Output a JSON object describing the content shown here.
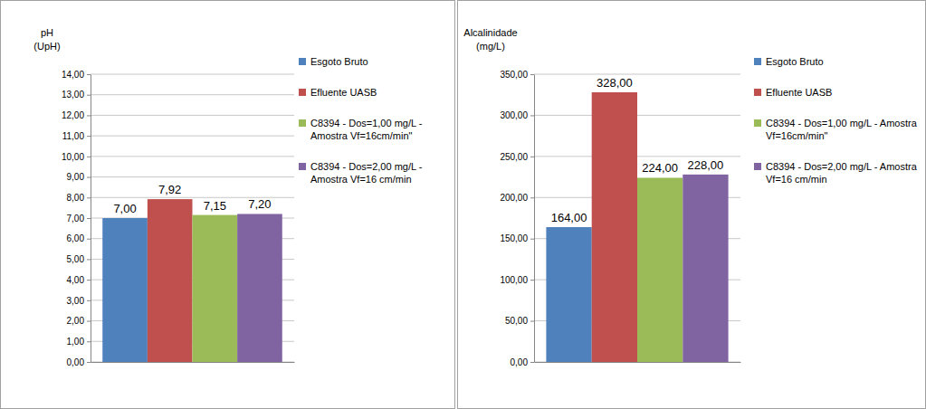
{
  "chart_data": [
    {
      "type": "bar",
      "y_label": [
        "pH",
        "(UpH)"
      ],
      "categories": [
        null
      ],
      "series": [
        {
          "name": "Esgoto Bruto",
          "color": "#4f81bd",
          "values": [
            7.0
          ],
          "value_labels": [
            "7,00"
          ]
        },
        {
          "name": "Efluente UASB",
          "color": "#c0504d",
          "values": [
            7.92
          ],
          "value_labels": [
            "7,92"
          ]
        },
        {
          "name": "C8394 - Dos=1,00 mg/L - Amostra Vf=16cm/min\"",
          "color": "#9bbb59",
          "values": [
            7.15
          ],
          "value_labels": [
            "7,15"
          ]
        },
        {
          "name": "C8394 - Dos=2,00 mg/L - Amostra Vf=16 cm/min",
          "color": "#8064a2",
          "values": [
            7.2
          ],
          "value_labels": [
            "7,20"
          ]
        }
      ],
      "ylim": [
        0,
        14
      ],
      "yticks": [
        {
          "value": 0,
          "label": "0,00"
        },
        {
          "value": 1,
          "label": "1,00"
        },
        {
          "value": 2,
          "label": "2,00"
        },
        {
          "value": 3,
          "label": "3,00"
        },
        {
          "value": 4,
          "label": "4,00"
        },
        {
          "value": 5,
          "label": "5,00"
        },
        {
          "value": 6,
          "label": "6,00"
        },
        {
          "value": 7,
          "label": "7,00"
        },
        {
          "value": 8,
          "label": "8,00"
        },
        {
          "value": 9,
          "label": "9,00"
        },
        {
          "value": 10,
          "label": "10,00"
        },
        {
          "value": 11,
          "label": "11,00"
        },
        {
          "value": 12,
          "label": "12,00"
        },
        {
          "value": 13,
          "label": "13,00"
        },
        {
          "value": 14,
          "label": "14,00"
        }
      ],
      "grid": true,
      "data_labels": true,
      "legend": "right"
    },
    {
      "type": "bar",
      "y_label": [
        "Alcalinidade",
        "(mg/L)"
      ],
      "categories": [
        null
      ],
      "series": [
        {
          "name": "Esgoto Bruto",
          "color": "#4f81bd",
          "values": [
            164.0
          ],
          "value_labels": [
            "164,00"
          ]
        },
        {
          "name": "Efluente UASB",
          "color": "#c0504d",
          "values": [
            328.0
          ],
          "value_labels": [
            "328,00"
          ]
        },
        {
          "name": "C8394 - Dos=1,00 mg/L - Amostra Vf=16cm/min\"",
          "color": "#9bbb59",
          "values": [
            224.0
          ],
          "value_labels": [
            "224,00"
          ]
        },
        {
          "name": "C8394 - Dos=2,00 mg/L - Amostra Vf=16 cm/min",
          "color": "#8064a2",
          "values": [
            228.0
          ],
          "value_labels": [
            "228,00"
          ]
        }
      ],
      "ylim": [
        0,
        350
      ],
      "yticks": [
        {
          "value": 0,
          "label": "0,00"
        },
        {
          "value": 50,
          "label": "50,00"
        },
        {
          "value": 100,
          "label": "100,00"
        },
        {
          "value": 150,
          "label": "150,00"
        },
        {
          "value": 200,
          "label": "200,00"
        },
        {
          "value": 250,
          "label": "250,00"
        },
        {
          "value": 300,
          "label": "300,00"
        },
        {
          "value": 350,
          "label": "350,00"
        }
      ],
      "grid": true,
      "data_labels": true,
      "legend": "right"
    }
  ]
}
